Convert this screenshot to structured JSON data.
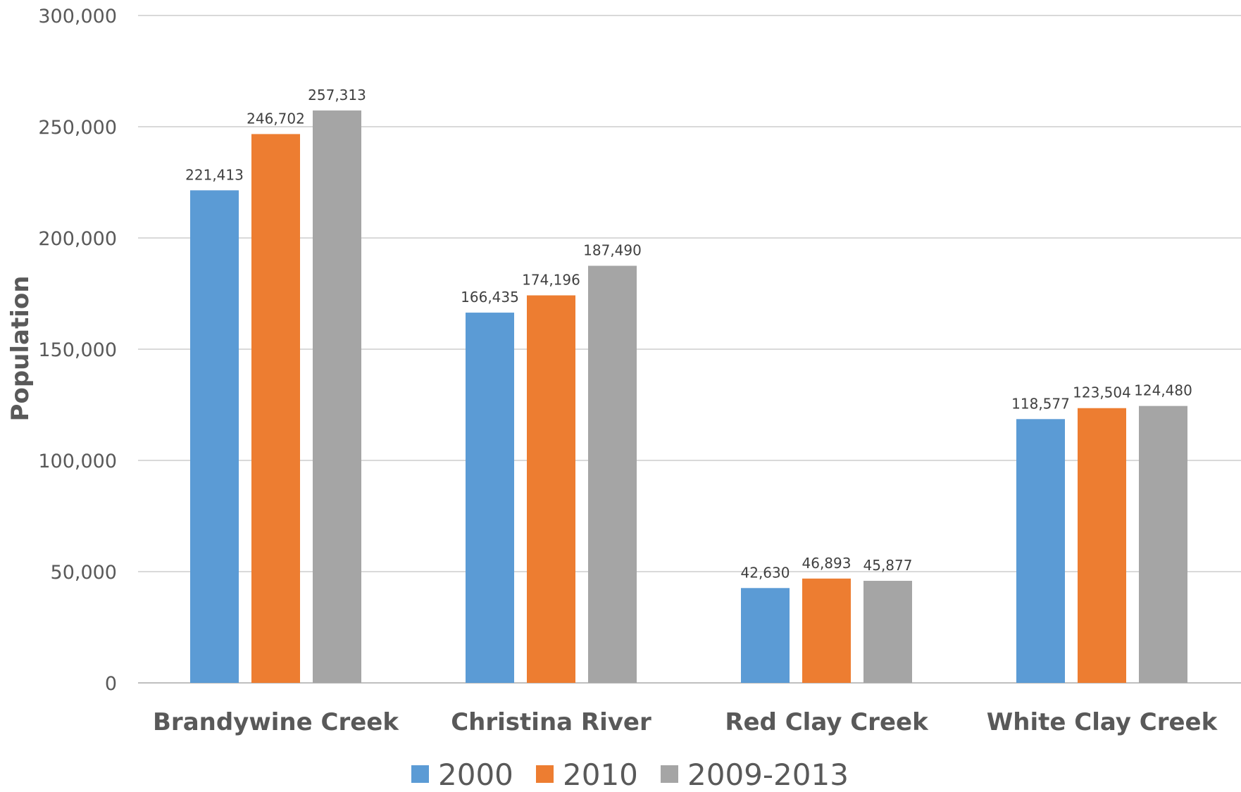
{
  "chart_data": {
    "type": "bar",
    "title": "",
    "xlabel": "",
    "ylabel": "Population",
    "ylim": [
      0,
      300000
    ],
    "yticks": [
      0,
      50000,
      100000,
      150000,
      200000,
      250000,
      300000
    ],
    "ytick_labels": [
      "0",
      "50,000",
      "100,000",
      "150,000",
      "200,000",
      "250,000",
      "300,000"
    ],
    "categories": [
      "Brandywine Creek",
      "Christina River",
      "Red Clay Creek",
      "White Clay Creek"
    ],
    "series": [
      {
        "name": "2000",
        "color": "#5B9BD5",
        "values": [
          221413,
          166435,
          42630,
          118577
        ],
        "labels": [
          "221,413",
          "166,435",
          "42,630",
          "118,577"
        ]
      },
      {
        "name": "2010",
        "color": "#ED7D31",
        "values": [
          246702,
          174196,
          46893,
          123504
        ],
        "labels": [
          "246,702",
          "174,196",
          "46,893",
          "123,504"
        ]
      },
      {
        "name": "2009-2013",
        "color": "#A5A5A5",
        "values": [
          257313,
          187490,
          45877,
          124480
        ],
        "labels": [
          "257,313",
          "187,490",
          "45,877",
          "124,480"
        ]
      }
    ],
    "grid": true,
    "legend_position": "bottom"
  }
}
